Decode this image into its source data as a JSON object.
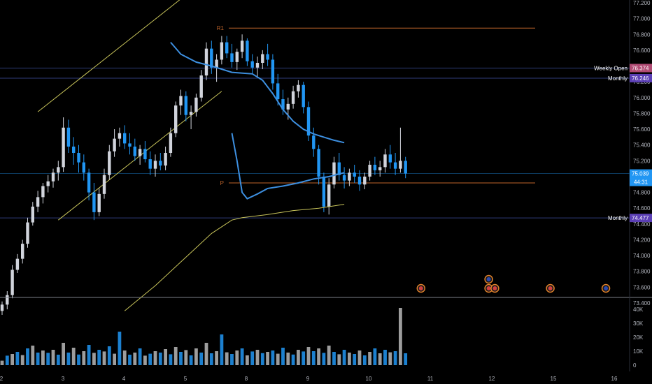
{
  "chart_data": {
    "type": "candlestick",
    "x_ticks": [
      "2",
      "3",
      "4",
      "5",
      "8",
      "9",
      "10",
      "11",
      "12",
      "15",
      "16"
    ],
    "y_ticks": [
      "77.200",
      "77.000",
      "76.800",
      "76.600",
      "76.400",
      "76.200",
      "76.000",
      "75.800",
      "75.600",
      "75.400",
      "75.200",
      "75.000",
      "74.800",
      "74.600",
      "74.400",
      "74.200",
      "74.000",
      "73.800",
      "73.600",
      "73.400"
    ],
    "ylim": [
      73.3,
      77.25
    ],
    "volume_ticks": [
      "40K",
      "30K",
      "20K",
      "10K",
      "0"
    ],
    "volume_ylim": [
      0,
      43000
    ],
    "price_tag": {
      "value": "75.039",
      "countdown": "44:31",
      "color": "#2196f3"
    },
    "levels": [
      {
        "label": "Weekly Open",
        "tag": "76.374",
        "value": 76.374,
        "tag_color": "#b04a73"
      },
      {
        "label": "Monthly",
        "tag": "76.246",
        "value": 76.246,
        "tag_color": "#5b3fb5"
      },
      {
        "label": "Monthly",
        "tag": "74.477",
        "value": 74.477,
        "tag_color": "#5b3fb5"
      }
    ],
    "pivots": [
      {
        "label": "R1",
        "value": 76.88,
        "color": "#c0652a"
      },
      {
        "label": "P",
        "value": 74.92,
        "color": "#c0652a"
      }
    ],
    "candles": [
      [
        73.3,
        73.42,
        73.25,
        73.38
      ],
      [
        73.38,
        73.55,
        73.32,
        73.5
      ],
      [
        73.5,
        73.88,
        73.46,
        73.82
      ],
      [
        73.82,
        74.02,
        73.78,
        73.96
      ],
      [
        73.96,
        74.2,
        73.9,
        74.15
      ],
      [
        74.15,
        74.48,
        74.1,
        74.42
      ],
      [
        74.42,
        74.68,
        74.38,
        74.62
      ],
      [
        74.62,
        74.82,
        74.55,
        74.74
      ],
      [
        74.74,
        74.92,
        74.66,
        74.88
      ],
      [
        74.88,
        75.02,
        74.8,
        74.94
      ],
      [
        74.94,
        75.1,
        74.86,
        75.05
      ],
      [
        75.05,
        75.2,
        74.95,
        75.12
      ],
      [
        75.12,
        75.75,
        75.06,
        75.62
      ],
      [
        75.62,
        75.72,
        75.3,
        75.38
      ],
      [
        75.38,
        75.5,
        75.15,
        75.3
      ],
      [
        75.3,
        75.4,
        75.05,
        75.18
      ],
      [
        75.18,
        75.28,
        74.95,
        75.05
      ],
      [
        75.05,
        75.1,
        74.7,
        74.8
      ],
      [
        74.8,
        74.92,
        74.45,
        74.55
      ],
      [
        74.55,
        74.85,
        74.5,
        74.78
      ],
      [
        74.78,
        75.1,
        74.72,
        75.02
      ],
      [
        75.02,
        75.4,
        74.96,
        75.32
      ],
      [
        75.32,
        75.6,
        75.25,
        75.48
      ],
      [
        75.48,
        75.62,
        75.38,
        75.55
      ],
      [
        75.55,
        75.65,
        75.35,
        75.42
      ],
      [
        75.42,
        75.55,
        75.28,
        75.38
      ],
      [
        75.38,
        75.48,
        75.2,
        75.26
      ],
      [
        75.26,
        75.4,
        75.15,
        75.35
      ],
      [
        75.35,
        75.45,
        75.18,
        75.22
      ],
      [
        75.22,
        75.32,
        75.02,
        75.1
      ],
      [
        75.1,
        75.28,
        75.0,
        75.2
      ],
      [
        75.2,
        75.3,
        75.08,
        75.14
      ],
      [
        75.14,
        75.38,
        75.08,
        75.3
      ],
      [
        75.3,
        75.62,
        75.25,
        75.55
      ],
      [
        75.55,
        75.95,
        75.5,
        75.9
      ],
      [
        75.9,
        76.1,
        75.78,
        76.02
      ],
      [
        76.02,
        76.08,
        75.7,
        75.78
      ],
      [
        75.78,
        75.9,
        75.6,
        75.82
      ],
      [
        75.82,
        76.05,
        75.76,
        76.0
      ],
      [
        76.0,
        76.35,
        75.95,
        76.28
      ],
      [
        76.28,
        76.7,
        76.22,
        76.62
      ],
      [
        76.62,
        76.72,
        76.3,
        76.38
      ],
      [
        76.38,
        76.55,
        76.2,
        76.48
      ],
      [
        76.48,
        76.78,
        76.42,
        76.7
      ],
      [
        76.7,
        76.78,
        76.5,
        76.56
      ],
      [
        76.56,
        76.68,
        76.38,
        76.45
      ],
      [
        76.45,
        76.62,
        76.35,
        76.58
      ],
      [
        76.58,
        76.8,
        76.5,
        76.72
      ],
      [
        76.72,
        76.75,
        76.4,
        76.46
      ],
      [
        76.46,
        76.55,
        76.3,
        76.38
      ],
      [
        76.38,
        76.52,
        76.25,
        76.44
      ],
      [
        76.44,
        76.6,
        76.36,
        76.55
      ],
      [
        76.55,
        76.68,
        76.4,
        76.48
      ],
      [
        76.48,
        76.55,
        76.1,
        76.18
      ],
      [
        76.18,
        76.3,
        75.9,
        75.98
      ],
      [
        75.98,
        76.1,
        75.78,
        75.85
      ],
      [
        75.85,
        76.0,
        75.72,
        75.92
      ],
      [
        75.92,
        76.15,
        75.86,
        76.08
      ],
      [
        76.08,
        76.22,
        76.0,
        76.16
      ],
      [
        76.16,
        76.2,
        75.8,
        75.88
      ],
      [
        75.88,
        75.95,
        75.45,
        75.52
      ],
      [
        75.52,
        75.62,
        75.25,
        75.35
      ],
      [
        75.35,
        75.4,
        74.9,
        75.0
      ],
      [
        75.0,
        75.05,
        74.55,
        74.62
      ],
      [
        74.62,
        74.98,
        74.52,
        74.9
      ],
      [
        74.9,
        75.25,
        74.85,
        75.18
      ],
      [
        75.18,
        75.3,
        74.95,
        75.02
      ],
      [
        75.02,
        75.12,
        74.85,
        74.95
      ],
      [
        74.95,
        75.1,
        74.88,
        75.05
      ],
      [
        75.05,
        75.15,
        74.92,
        75.0
      ],
      [
        75.0,
        75.08,
        74.82,
        74.9
      ],
      [
        74.9,
        75.05,
        74.84,
        75.0
      ],
      [
        75.0,
        75.2,
        74.95,
        75.15
      ],
      [
        75.15,
        75.25,
        75.02,
        75.08
      ],
      [
        75.08,
        75.2,
        75.0,
        75.12
      ],
      [
        75.12,
        75.35,
        75.05,
        75.28
      ],
      [
        75.28,
        75.4,
        75.1,
        75.18
      ],
      [
        75.18,
        75.3,
        75.02,
        75.1
      ],
      [
        75.1,
        75.62,
        75.05,
        75.2
      ],
      [
        75.2,
        75.25,
        74.98,
        75.04
      ]
    ],
    "ema_fast": [
      [
        33,
        76.7
      ],
      [
        35,
        76.55
      ],
      [
        38,
        76.45
      ],
      [
        41,
        76.4
      ],
      [
        45,
        76.32
      ],
      [
        49,
        76.3
      ],
      [
        51,
        76.22
      ],
      [
        53,
        76.05
      ],
      [
        55,
        75.85
      ],
      [
        57,
        75.7
      ],
      [
        59,
        75.6
      ],
      [
        61,
        75.54
      ],
      [
        63,
        75.5
      ],
      [
        65,
        75.46
      ],
      [
        67,
        75.43
      ]
    ],
    "ema_fast_low": [
      [
        45,
        75.55
      ],
      [
        46,
        75.2
      ],
      [
        47,
        74.8
      ],
      [
        48,
        74.72
      ],
      [
        50,
        74.78
      ],
      [
        52,
        74.85
      ],
      [
        55,
        74.88
      ],
      [
        58,
        74.92
      ],
      [
        61,
        74.97
      ],
      [
        64,
        75.0
      ],
      [
        67,
        75.05
      ]
    ],
    "ema_slow": [
      [
        24,
        73.3
      ],
      [
        30,
        73.62
      ],
      [
        36,
        73.98
      ],
      [
        41,
        74.28
      ],
      [
        45,
        74.45
      ],
      [
        47,
        74.48
      ],
      [
        52,
        74.52
      ],
      [
        57,
        74.57
      ],
      [
        62,
        74.6
      ],
      [
        67,
        74.65
      ]
    ],
    "channel": {
      "upper": [
        [
          7,
          75.82
        ],
        [
          36,
          77.3
        ]
      ],
      "lower": [
        [
          11,
          74.45
        ],
        [
          43,
          76.08
        ]
      ]
    },
    "volume": [
      [
        3200,
        0
      ],
      [
        6800,
        1
      ],
      [
        8000,
        0
      ],
      [
        9500,
        1
      ],
      [
        7200,
        0
      ],
      [
        12000,
        1
      ],
      [
        14000,
        0
      ],
      [
        9000,
        1
      ],
      [
        10500,
        0
      ],
      [
        8800,
        1
      ],
      [
        11000,
        0
      ],
      [
        7500,
        1
      ],
      [
        16000,
        0
      ],
      [
        9000,
        1
      ],
      [
        12500,
        0
      ],
      [
        7600,
        1
      ],
      [
        10000,
        0
      ],
      [
        14500,
        1
      ],
      [
        8800,
        0
      ],
      [
        11000,
        1
      ],
      [
        9800,
        0
      ],
      [
        13500,
        1
      ],
      [
        8200,
        0
      ],
      [
        24000,
        1
      ],
      [
        10500,
        0
      ],
      [
        7500,
        1
      ],
      [
        9000,
        0
      ],
      [
        12000,
        1
      ],
      [
        6800,
        0
      ],
      [
        8200,
        1
      ],
      [
        10000,
        0
      ],
      [
        9000,
        1
      ],
      [
        11500,
        0
      ],
      [
        7800,
        1
      ],
      [
        13000,
        0
      ],
      [
        9500,
        1
      ],
      [
        10800,
        0
      ],
      [
        7000,
        1
      ],
      [
        12000,
        0
      ],
      [
        9000,
        1
      ],
      [
        16000,
        0
      ],
      [
        8500,
        1
      ],
      [
        10000,
        0
      ],
      [
        22000,
        1
      ],
      [
        9200,
        0
      ],
      [
        8000,
        1
      ],
      [
        10500,
        0
      ],
      [
        12000,
        1
      ],
      [
        7000,
        0
      ],
      [
        9800,
        1
      ],
      [
        11000,
        0
      ],
      [
        8600,
        1
      ],
      [
        9500,
        0
      ],
      [
        10500,
        1
      ],
      [
        8200,
        0
      ],
      [
        12500,
        1
      ],
      [
        9000,
        0
      ],
      [
        7600,
        1
      ],
      [
        11000,
        0
      ],
      [
        9800,
        1
      ],
      [
        13000,
        0
      ],
      [
        10000,
        1
      ],
      [
        12000,
        0
      ],
      [
        8800,
        1
      ],
      [
        14000,
        0
      ],
      [
        9500,
        1
      ],
      [
        7800,
        0
      ],
      [
        11000,
        1
      ],
      [
        9000,
        0
      ],
      [
        8000,
        1
      ],
      [
        10500,
        0
      ],
      [
        7000,
        1
      ],
      [
        9500,
        0
      ],
      [
        12000,
        1
      ],
      [
        8500,
        0
      ],
      [
        11000,
        1
      ],
      [
        9200,
        0
      ],
      [
        10000,
        1
      ],
      [
        41000,
        0
      ],
      [
        8500,
        1
      ]
    ],
    "events": [
      {
        "day": 10.85,
        "flag": "in"
      },
      {
        "day": 11.95,
        "flag": "eu"
      },
      {
        "day": 11.95,
        "flag": "in"
      },
      {
        "day": 12.05,
        "flag": "in"
      },
      {
        "day": 12.95,
        "flag": "in"
      },
      {
        "day": 13.95,
        "flag": "eu"
      }
    ]
  }
}
